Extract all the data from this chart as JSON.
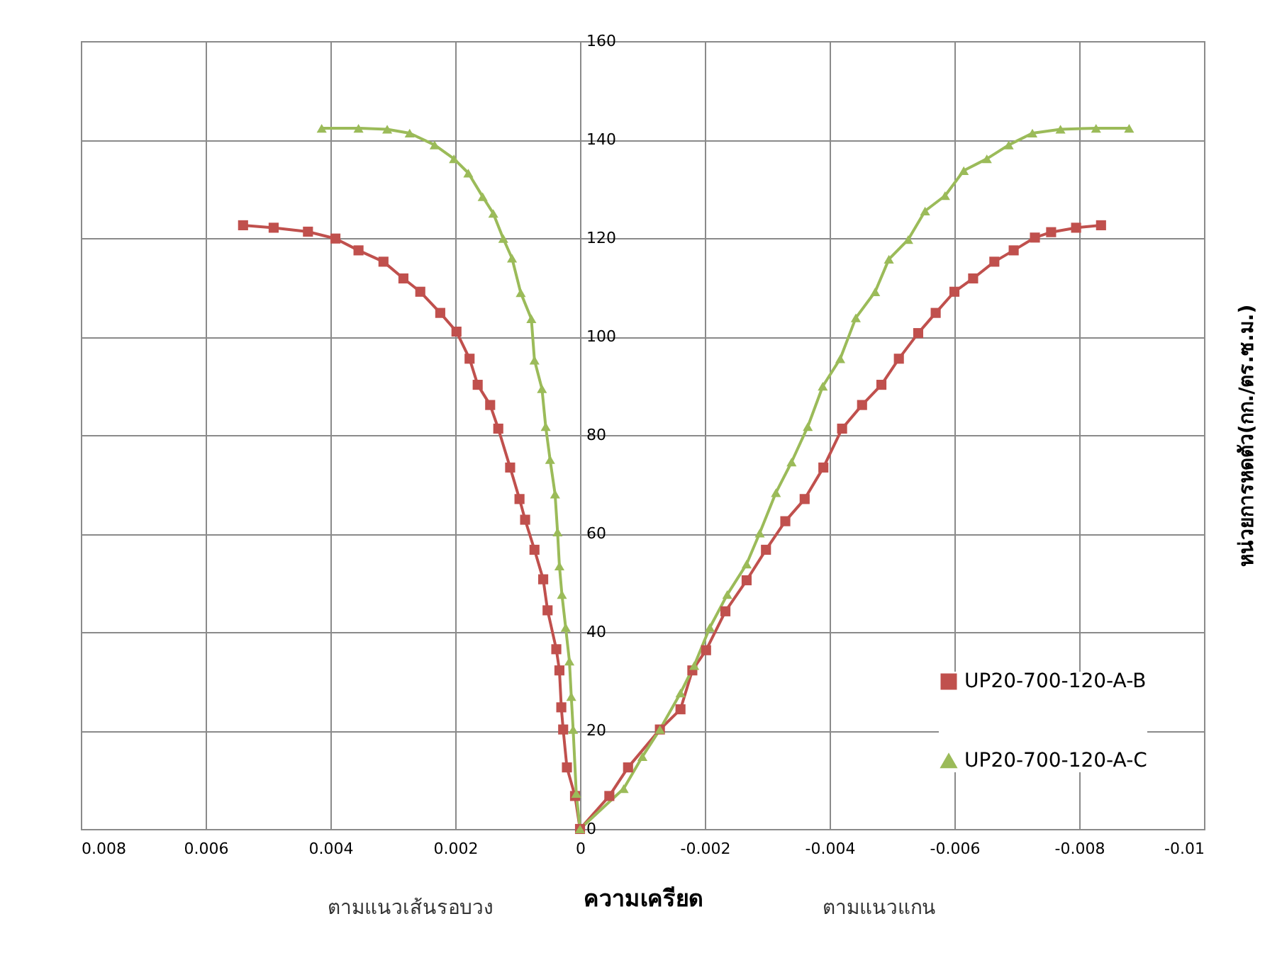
{
  "chart_data": {
    "type": "line",
    "xlabel": "ความเครียด",
    "ylabel": "หน่วยการหดตัว(กก./ตร.ซ.ม.)",
    "annotations": [
      "ตามแนวเส้นรอบวง",
      "ตามแนวแกน"
    ],
    "xlim": [
      0.008,
      -0.01
    ],
    "xticks": [
      0.008,
      0.006,
      0.004,
      0.002,
      0,
      -0.002,
      -0.004,
      -0.006,
      -0.008,
      -0.01
    ],
    "ylim": [
      0,
      160
    ],
    "yticks": [
      0,
      20,
      40,
      60,
      80,
      100,
      120,
      140,
      160
    ],
    "grid": true,
    "legend": "bottom right",
    "line_style": "solid",
    "series": [
      {
        "name": "UP20-700-120-A-B",
        "color": "#c0504d",
        "marker": "square",
        "x": [
          0.0054,
          0.00491,
          0.00436,
          0.00392,
          0.00355,
          0.00315,
          0.00283,
          0.00256,
          0.00224,
          0.00198,
          0.00177,
          0.00164,
          0.00144,
          0.00131,
          0.00112,
          0.00097,
          0.00088,
          0.00073,
          0.00059,
          0.00052,
          0.00038,
          0.00033,
          0.0003,
          0.00027,
          0.00021,
          8e-05,
          0,
          -0.00047,
          -0.00077,
          -0.00128,
          -0.00161,
          -0.0018,
          -0.00202,
          -0.00233,
          -0.00267,
          -0.00298,
          -0.00329,
          -0.0036,
          -0.0039,
          -0.0042,
          -0.00452,
          -0.00483,
          -0.00511,
          -0.00542,
          -0.0057,
          -0.006,
          -0.0063,
          -0.00664,
          -0.00695,
          -0.00729,
          -0.00755,
          -0.00795,
          -0.00835
        ],
        "values": [
          122.6,
          122.1,
          121.3,
          119.9,
          117.5,
          115.2,
          111.8,
          109.1,
          104.8,
          101,
          95.5,
          90.2,
          86.1,
          81.3,
          73.4,
          67,
          62.8,
          56.7,
          50.7,
          44.4,
          36.5,
          32.2,
          24.7,
          20.2,
          12.5,
          6.7,
          0,
          6.7,
          12.5,
          20.2,
          24.3,
          32.2,
          36.3,
          44.2,
          50.5,
          56.7,
          62.5,
          67,
          73.4,
          81.3,
          86.1,
          90.2,
          95.5,
          100.7,
          104.8,
          109.1,
          111.8,
          115.2,
          117.5,
          120.1,
          121.2,
          122.1,
          122.6
        ]
      },
      {
        "name": "UP20-700-120-A-C",
        "color": "#9bbb59",
        "marker": "triangle",
        "x": [
          0.00414,
          0.00355,
          0.00309,
          0.00273,
          0.00233,
          0.00202,
          0.00179,
          0.00156,
          0.00139,
          0.00123,
          0.00109,
          0.00095,
          0.00078,
          0.00073,
          0.00061,
          0.00055,
          0.00048,
          0.0004,
          0.00036,
          0.00033,
          0.00029,
          0.00023,
          0.00017,
          0.00014,
          0.00011,
          6e-05,
          0,
          -0.0007,
          -0.001,
          -0.00128,
          -0.00161,
          -0.00183,
          -0.00208,
          -0.00236,
          -0.00267,
          -0.00288,
          -0.00314,
          -0.00339,
          -0.00365,
          -0.00389,
          -0.00417,
          -0.00442,
          -0.00473,
          -0.00495,
          -0.00526,
          -0.00553,
          -0.00585,
          -0.00615,
          -0.00652,
          -0.00687,
          -0.00725,
          -0.0077,
          -0.00827,
          -0.0088
        ],
        "values": [
          142.3,
          142.3,
          142.1,
          141.3,
          138.9,
          136.1,
          133.2,
          128.4,
          125,
          119.9,
          115.9,
          108.9,
          103.6,
          95.2,
          89.4,
          81.7,
          75,
          68,
          60.3,
          53.4,
          47.6,
          40.9,
          34.1,
          26.9,
          20.2,
          7.2,
          0,
          8.2,
          14.7,
          20.2,
          27.6,
          33.2,
          40.9,
          47.6,
          53.8,
          60.1,
          68.3,
          74.5,
          81.7,
          89.9,
          95.5,
          103.8,
          109.1,
          115.7,
          119.7,
          125.5,
          128.6,
          133.7,
          136.1,
          138.9,
          141.3,
          142.1,
          142.3,
          142.3
        ]
      }
    ]
  }
}
